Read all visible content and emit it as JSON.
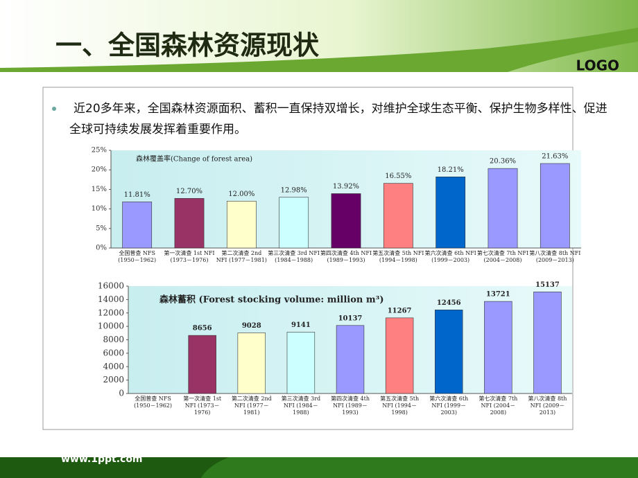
{
  "header": {
    "title": "一、全国森林资源现状",
    "logo": "LOGO"
  },
  "bullet": "近20多年来，全国森林资源面积、蓄积一直保持双增长，对维护全球生态平衡、保护生物多样性、促进全球可持续发展发挥着重要作用。",
  "footer": {
    "url": "www.1ppt.com"
  },
  "chart_data": [
    {
      "type": "bar",
      "title": "森林覆盖率(Change of forest area)",
      "categories": [
        "全国普查 NFS (1950－1962)",
        "第一次清查 1st NFI (1973－1976)",
        "第二次清查 2nd NFI (1977－1981)",
        "第三次清查 3rd NFI (1984－1988)",
        "第四次清查 4th NFI (1989－1993)",
        "第五次清查 5th NFI (1994－1998)",
        "第六次清查 6th NFI (1999－2003)",
        "第七次清查 7th NFI (2004－2008)",
        "第八次清查 8th NFI (2009－2013)"
      ],
      "values": [
        11.81,
        12.7,
        12.0,
        12.98,
        13.92,
        16.55,
        18.21,
        20.36,
        21.63
      ],
      "value_labels": [
        "11.81%",
        "12.70%",
        "12.00%",
        "12.98%",
        "13.92%",
        "16.55%",
        "18.21%",
        "20.36%",
        "21.63%"
      ],
      "colors": [
        "#9999ff",
        "#993366",
        "#ffffcc",
        "#ccffff",
        "#660066",
        "#ff8080",
        "#0066cc",
        "#9999ff",
        "#9999ff"
      ],
      "ylim": [
        0,
        25
      ],
      "yticks": [
        {
          "value": 0,
          "label": "0%"
        },
        {
          "value": 5,
          "label": "5%"
        },
        {
          "value": 10,
          "label": "10%"
        },
        {
          "value": 15,
          "label": "15%"
        },
        {
          "value": 20,
          "label": "20%"
        },
        {
          "value": 25,
          "label": "25%"
        }
      ],
      "grid": false
    },
    {
      "type": "bar",
      "title": "森林蓄积 (Forest stocking volume: million m³)",
      "categories": [
        "全国普查 NFS (1950－1962)",
        "第一次清查 1st NFI (1973－1976)",
        "第二次清查 2nd NFI (1977－1981)",
        "第三次清查 3rd NFI (1984－1988)",
        "第四次清查 4th NFI (1989－1993)",
        "第五次清查 5th NFI (1994－1998)",
        "第六次清查 6th NFI (1999－2003)",
        "第七次清查 7th NFI (2004－2008)",
        "第八次清查 8th NFI (2009－2013)"
      ],
      "values": [
        null,
        8656,
        9028,
        9141,
        10137,
        11267,
        12456,
        13721,
        15137
      ],
      "colors": [
        "#9999ff",
        "#993366",
        "#ffffcc",
        "#ccffff",
        "#9999ff",
        "#ff8080",
        "#0066cc",
        "#9999ff",
        "#9999ff"
      ],
      "ylim": [
        0,
        16000
      ],
      "yticks": [
        0,
        2000,
        4000,
        6000,
        8000,
        10000,
        12000,
        14000,
        16000
      ],
      "grid": false
    }
  ]
}
